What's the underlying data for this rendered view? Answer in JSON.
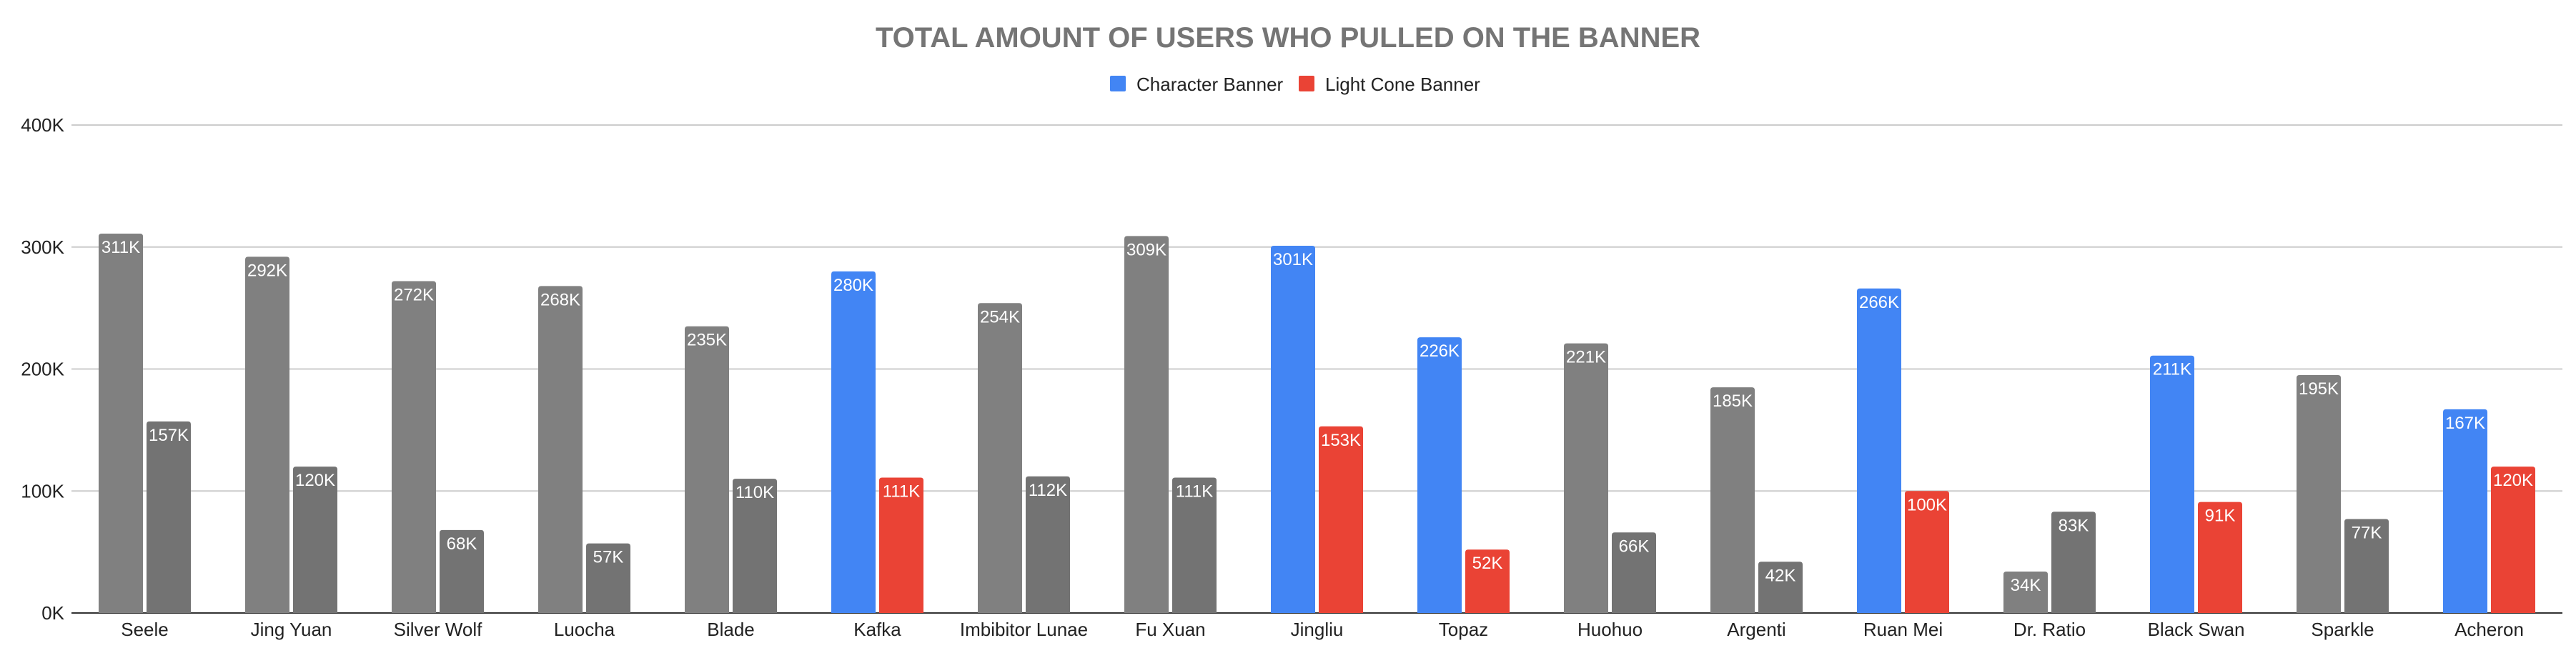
{
  "chart_data": {
    "type": "bar",
    "title": "TOTAL AMOUNT OF USERS WHO PULLED ON THE BANNER",
    "xlabel": "",
    "ylabel": "",
    "ylim": [
      0,
      400000
    ],
    "yticks": [
      {
        "value": 0,
        "label": "0K"
      },
      {
        "value": 100000,
        "label": "100K"
      },
      {
        "value": 200000,
        "label": "200K"
      },
      {
        "value": 300000,
        "label": "300K"
      },
      {
        "value": 400000,
        "label": "400K"
      }
    ],
    "grid": true,
    "legend_position": "top-center",
    "categories": [
      "Seele",
      "Jing Yuan",
      "Silver Wolf",
      "Luocha",
      "Blade",
      "Kafka",
      "Imbibitor Lunae",
      "Fu Xuan",
      "Jingliu",
      "Topaz",
      "Huohuo",
      "Argenti",
      "Ruan Mei",
      "Dr. Ratio",
      "Black Swan",
      "Sparkle",
      "Acheron"
    ],
    "series": [
      {
        "name": "Character Banner",
        "color": "#4285f4",
        "values": [
          311000,
          292000,
          272000,
          268000,
          235000,
          280000,
          254000,
          309000,
          301000,
          226000,
          221000,
          185000,
          266000,
          34000,
          211000,
          195000,
          167000
        ],
        "labels": [
          "311K",
          "292K",
          "272K",
          "268K",
          "235K",
          "280K",
          "254K",
          "309K",
          "301K",
          "226K",
          "221K",
          "185K",
          "266K",
          "34K",
          "211K",
          "195K",
          "167K"
        ]
      },
      {
        "name": "Light Cone Banner",
        "color": "#ea4335",
        "values": [
          157000,
          120000,
          68000,
          57000,
          110000,
          111000,
          112000,
          111000,
          153000,
          52000,
          66000,
          42000,
          100000,
          83000,
          91000,
          77000,
          120000
        ],
        "labels": [
          "157K",
          "120K",
          "68K",
          "57K",
          "110K",
          "111K",
          "112K",
          "111K",
          "153K",
          "52K",
          "66K",
          "42K",
          "100K",
          "83K",
          "91K",
          "77K",
          "120K"
        ]
      }
    ],
    "highlighted_categories": [
      "Kafka",
      "Jingliu",
      "Topaz",
      "Ruan Mei",
      "Black Swan",
      "Acheron"
    ],
    "muted_colors": {
      "Character Banner": "#808080",
      "Light Cone Banner": "#737373"
    }
  }
}
